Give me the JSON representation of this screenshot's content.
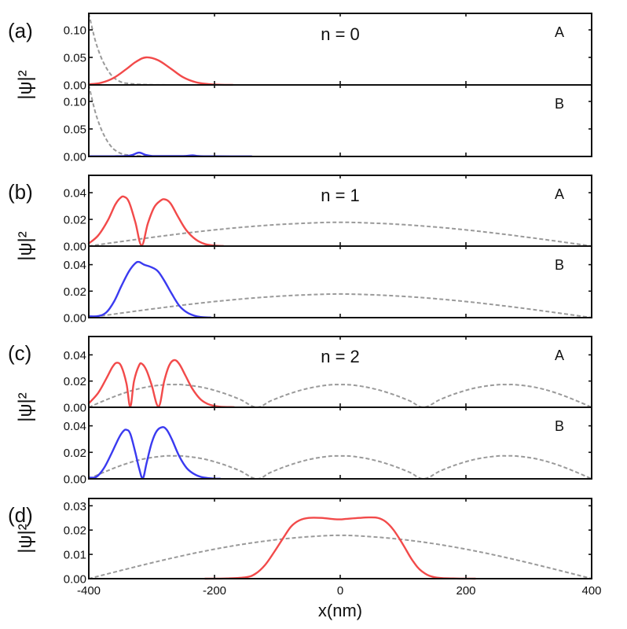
{
  "chart_data": {
    "type": "line",
    "xlabel": "x(nm)",
    "ylabel": "|ψ|²",
    "xlim": [
      -400,
      400
    ],
    "xticks": [
      -400,
      -200,
      0,
      200,
      400
    ],
    "xtick_labels": [
      "-400",
      "-200",
      "0",
      "200",
      "400"
    ],
    "colors": {
      "A": "#f24a4a",
      "B": "#3a3af0",
      "reference": "#9a9a9a"
    },
    "panels": [
      {
        "id": "a",
        "letter": "(a)",
        "n_label": "n = 0",
        "subplots": [
          {
            "sublattice": "A",
            "ylim": [
              0,
              0.13
            ],
            "yticks": [
              0.0,
              0.05,
              0.1
            ],
            "ytick_labels": [
              "0.00",
              "0.05",
              "0.10"
            ],
            "series": {
              "x": [
                -400,
                -380,
                -360,
                -340,
                -325,
                -309,
                -290,
                -270,
                -250,
                -230,
                -210,
                -190,
                -171
              ],
              "y": [
                0.001,
                0.004,
                0.013,
                0.029,
                0.042,
                0.05,
                0.045,
                0.03,
                0.014,
                0.005,
                0.0015,
                0.0003,
                0.0001
              ]
            },
            "reference": {
              "x": [
                -400,
                -395,
                -390,
                -385,
                -380,
                -375,
                -370,
                -365,
                -360,
                -350,
                -340,
                -320,
                -300,
                -280,
                -260,
                -240
              ],
              "y": [
                0.13,
                0.105,
                0.082,
                0.064,
                0.049,
                0.037,
                0.027,
                0.019,
                0.013,
                0.006,
                0.003,
                0.001,
                0.0003,
                0.0001,
                0.0,
                0.0
              ]
            }
          },
          {
            "sublattice": "B",
            "ylim": [
              0,
              0.13
            ],
            "yticks": [
              0.0,
              0.05,
              0.1
            ],
            "ytick_labels": [
              "0.00",
              "0.05",
              "0.10"
            ],
            "series": {
              "x": [
                -400,
                -360,
                -340,
                -330,
                -320,
                -310,
                -300,
                -280,
                -250,
                -235,
                -225,
                -200,
                -141
              ],
              "y": [
                0.0005,
                0.0005,
                0.001,
                0.003,
                0.007,
                0.003,
                0.001,
                0.0008,
                0.0008,
                0.002,
                0.0007,
                0.0004,
                0.0003
              ]
            },
            "reference": {
              "x": [
                -400,
                -395,
                -390,
                -385,
                -380,
                -375,
                -370,
                -365,
                -360,
                -350,
                -340,
                -320,
                -300,
                -280,
                -260,
                -240
              ],
              "y": [
                0.13,
                0.105,
                0.082,
                0.064,
                0.049,
                0.037,
                0.027,
                0.019,
                0.013,
                0.006,
                0.003,
                0.001,
                0.0003,
                0.0001,
                0.0,
                0.0
              ]
            }
          }
        ]
      },
      {
        "id": "b",
        "letter": "(b)",
        "n_label": "n = 1",
        "subplots": [
          {
            "sublattice": "A",
            "ylim": [
              0,
              0.053
            ],
            "yticks": [
              0.0,
              0.02,
              0.04
            ],
            "ytick_labels": [
              "0.00",
              "0.02",
              "0.04"
            ],
            "series": {
              "x": [
                -400,
                -385,
                -370,
                -358,
                -350,
                -344,
                -336,
                -326,
                -316,
                -306,
                -296,
                -286,
                -279,
                -270,
                -258,
                -245,
                -230,
                -215,
                -200,
                -186
              ],
              "y": [
                0.002,
                0.008,
                0.019,
                0.031,
                0.036,
                0.037,
                0.033,
                0.018,
                0.0005,
                0.017,
                0.029,
                0.034,
                0.035,
                0.032,
                0.022,
                0.012,
                0.005,
                0.0015,
                0.0004,
                0.0001
              ]
            },
            "reference": {
              "x": [
                -400,
                -350,
                -300,
                -250,
                -200,
                -150,
                -100,
                -50,
                0,
                50,
                100,
                150,
                200,
                250,
                300,
                350,
                400
              ],
              "y": [
                0.0,
                0.00331,
                0.00651,
                0.00949,
                0.01214,
                0.01436,
                0.01609,
                0.01726,
                0.01785,
                0.01726,
                0.01609,
                0.01436,
                0.01214,
                0.00949,
                0.00651,
                0.00331,
                0.0
              ]
            }
          },
          {
            "sublattice": "B",
            "ylim": [
              0,
              0.054
            ],
            "yticks": [
              0.0,
              0.02,
              0.04
            ],
            "ytick_labels": [
              "0.00",
              "0.02",
              "0.04"
            ],
            "series": {
              "x": [
                -400,
                -385,
                -372,
                -360,
                -348,
                -336,
                -326,
                -320,
                -312,
                -300,
                -290,
                -280,
                -268,
                -256,
                -244,
                -232,
                -220,
                -206
              ],
              "y": [
                0.001,
                0.0012,
                0.004,
                0.012,
                0.024,
                0.035,
                0.041,
                0.042,
                0.04,
                0.038,
                0.035,
                0.028,
                0.018,
                0.009,
                0.004,
                0.0015,
                0.0004,
                0.0001
              ]
            },
            "reference": {
              "x": [
                -400,
                -350,
                -300,
                -250,
                -200,
                -150,
                -100,
                -50,
                0,
                50,
                100,
                150,
                200,
                250,
                300,
                350,
                400
              ],
              "y": [
                0.0,
                0.00331,
                0.00651,
                0.00949,
                0.01214,
                0.01436,
                0.01609,
                0.01726,
                0.01785,
                0.01726,
                0.01609,
                0.01436,
                0.01214,
                0.00949,
                0.00651,
                0.00331,
                0.0
              ]
            }
          }
        ]
      },
      {
        "id": "c",
        "letter": "(c)",
        "n_label": "n = 2",
        "subplots": [
          {
            "sublattice": "A",
            "ylim": [
              0,
              0.054
            ],
            "yticks": [
              0.0,
              0.02,
              0.04
            ],
            "ytick_labels": [
              "0.00",
              "0.02",
              "0.04"
            ],
            "series": {
              "x": [
                -400,
                -385,
                -372,
                -362,
                -355,
                -348,
                -340,
                -334,
                -328,
                -320,
                -315,
                -308,
                -300,
                -289,
                -280,
                -272,
                -264,
                -256,
                -246,
                -235,
                -222,
                -208,
                -192,
                -169
              ],
              "y": [
                0.003,
                0.011,
                0.022,
                0.031,
                0.034,
                0.031,
                0.018,
                0.0005,
                0.02,
                0.032,
                0.033,
                0.028,
                0.017,
                0.0005,
                0.02,
                0.032,
                0.036,
                0.033,
                0.024,
                0.014,
                0.006,
                0.002,
                0.0005,
                0.0001
              ]
            },
            "reference": {
              "x": [
                -400,
                -370,
                -340,
                -310,
                -280,
                -265,
                -250,
                -220,
                -190,
                -160,
                -133,
                -110,
                -80,
                -50,
                -20,
                0,
                20,
                50,
                80,
                110,
                133,
                160,
                190,
                220,
                250,
                265,
                280,
                310,
                340,
                370,
                400
              ],
              "y": [
                0.0,
                0.00615,
                0.01147,
                0.01526,
                0.01718,
                0.0173,
                0.01718,
                0.01526,
                0.01147,
                0.00615,
                0.0,
                0.00502,
                0.01048,
                0.01454,
                0.01694,
                0.0173,
                0.01694,
                0.01454,
                0.01048,
                0.00502,
                0.0,
                0.00615,
                0.01147,
                0.01526,
                0.01718,
                0.0173,
                0.01718,
                0.01526,
                0.01147,
                0.00615,
                0.0
              ]
            }
          },
          {
            "sublattice": "B",
            "ylim": [
              0,
              0.054
            ],
            "yticks": [
              0.0,
              0.02,
              0.04
            ],
            "ytick_labels": [
              "0.00",
              "0.02",
              "0.04"
            ],
            "series": {
              "x": [
                -400,
                -388,
                -376,
                -364,
                -352,
                -345,
                -340,
                -334,
                -326,
                -320,
                -314,
                -308,
                -300,
                -292,
                -283,
                -276,
                -268,
                -256,
                -244,
                -230,
                -216,
                -200,
                -191
              ],
              "y": [
                0.001,
                0.0015,
                0.008,
                0.019,
                0.031,
                0.036,
                0.037,
                0.034,
                0.02,
                0.008,
                0.0005,
                0.012,
                0.027,
                0.036,
                0.039,
                0.037,
                0.03,
                0.017,
                0.008,
                0.003,
                0.0009,
                0.0002,
                0.0001
              ]
            },
            "reference": {
              "x": [
                -400,
                -370,
                -340,
                -310,
                -280,
                -265,
                -250,
                -220,
                -190,
                -160,
                -133,
                -110,
                -80,
                -50,
                -20,
                0,
                20,
                50,
                80,
                110,
                133,
                160,
                190,
                220,
                250,
                265,
                280,
                310,
                340,
                370,
                400
              ],
              "y": [
                0.0,
                0.00615,
                0.01147,
                0.01526,
                0.01718,
                0.0173,
                0.01718,
                0.01526,
                0.01147,
                0.00615,
                0.0,
                0.00502,
                0.01048,
                0.01454,
                0.01694,
                0.0173,
                0.01694,
                0.01454,
                0.01048,
                0.00502,
                0.0,
                0.00615,
                0.01147,
                0.01526,
                0.01718,
                0.0173,
                0.01718,
                0.01526,
                0.01147,
                0.00615,
                0.0
              ]
            }
          }
        ]
      },
      {
        "id": "d",
        "letter": "(d)",
        "n_label": "",
        "subplots": [
          {
            "sublattice": "",
            "ylim": [
              0,
              0.033
            ],
            "yticks": [
              0.0,
              0.01,
              0.02,
              0.03
            ],
            "ytick_labels": [
              "0.00",
              "0.01",
              "0.02",
              "0.03"
            ],
            "series": {
              "x": [
                -215,
                -180,
                -150,
                -135,
                -120,
                -105,
                -90,
                -78,
                -65,
                -50,
                -30,
                -10,
                0,
                10,
                30,
                45,
                60,
                72,
                85,
                100,
                115,
                130,
                150,
                180,
                215
              ],
              "y": [
                0.0,
                0.0001,
                0.0006,
                0.002,
                0.0055,
                0.011,
                0.017,
                0.0215,
                0.024,
                0.025,
                0.025,
                0.0245,
                0.0244,
                0.0246,
                0.025,
                0.0252,
                0.025,
                0.0235,
                0.02,
                0.014,
                0.0075,
                0.003,
                0.0006,
                0.0001,
                0.0
              ]
            },
            "reference": {
              "x": [
                -400,
                -350,
                -300,
                -250,
                -200,
                -150,
                -100,
                -50,
                0,
                50,
                100,
                150,
                200,
                250,
                300,
                350,
                400
              ],
              "y": [
                0.0,
                0.00331,
                0.00651,
                0.00949,
                0.01214,
                0.01436,
                0.01609,
                0.01726,
                0.01785,
                0.01726,
                0.01609,
                0.01436,
                0.01214,
                0.00949,
                0.00651,
                0.00331,
                0.0
              ]
            }
          }
        ]
      }
    ]
  }
}
